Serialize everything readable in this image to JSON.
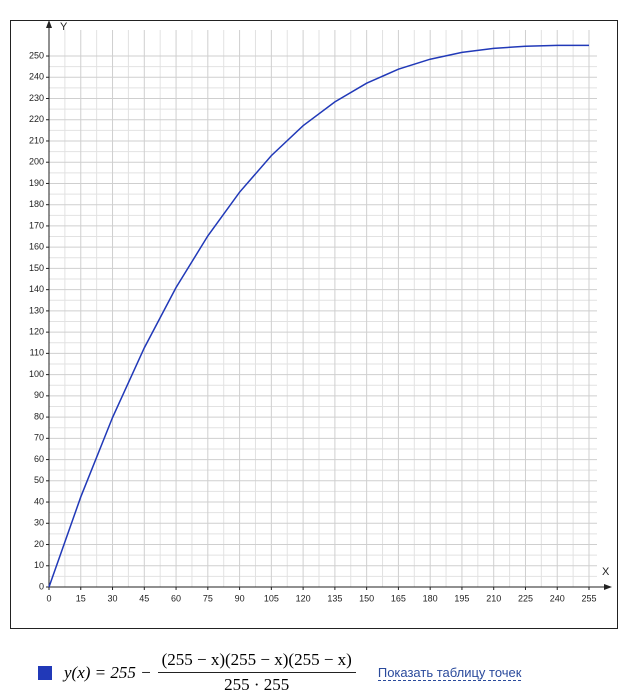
{
  "chart_data": {
    "type": "line",
    "x_label": "X",
    "y_label": "Y",
    "x": [
      0,
      15,
      30,
      45,
      60,
      75,
      90,
      105,
      120,
      135,
      150,
      165,
      180,
      195,
      210,
      225,
      240,
      255
    ],
    "values": [
      0,
      42.4,
      79.8,
      112.6,
      141.0,
      165.3,
      185.9,
      203.1,
      217.2,
      228.4,
      237.2,
      243.8,
      248.5,
      251.7,
      253.6,
      254.6,
      255.0,
      255
    ],
    "color": "#2139b8",
    "xlim": [
      0,
      255
    ],
    "ylim": [
      0,
      255
    ],
    "xticks": [
      0,
      15,
      30,
      45,
      60,
      75,
      90,
      105,
      120,
      135,
      150,
      165,
      180,
      195,
      210,
      225,
      240,
      255
    ],
    "yticks": [
      0,
      10,
      20,
      30,
      40,
      50,
      60,
      70,
      80,
      90,
      100,
      110,
      120,
      130,
      140,
      150,
      160,
      170,
      180,
      190,
      200,
      210,
      220,
      230,
      240,
      250
    ],
    "grid": true
  },
  "legend": {
    "lhs": "y(x) = 255 −",
    "numerator": "(255 − x)(255 − x)(255 − x)",
    "denominator": "255 · 255"
  },
  "link": "Показать таблицу точек"
}
